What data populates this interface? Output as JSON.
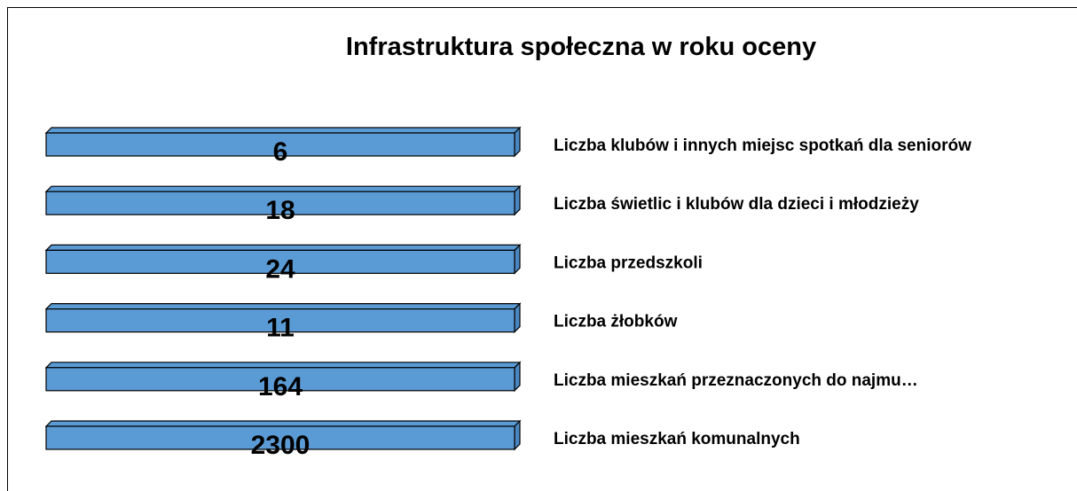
{
  "title": "Infrastruktura społeczna w roku oceny",
  "items": [
    {
      "label": "Liczba klubów i innych miejsc spotkań dla seniorów",
      "value": 6
    },
    {
      "label": "Liczba świetlic i klubów dla dzieci i młodzieży",
      "value": 18
    },
    {
      "label": "Liczba przedszkoli",
      "value": 24
    },
    {
      "label": "Liczba żłobków",
      "value": 11
    },
    {
      "label": "Liczba mieszkań przeznaczonych do najmu…",
      "value": 164
    },
    {
      "label": "Liczba mieszkań komunalnych",
      "value": 2300
    }
  ]
}
